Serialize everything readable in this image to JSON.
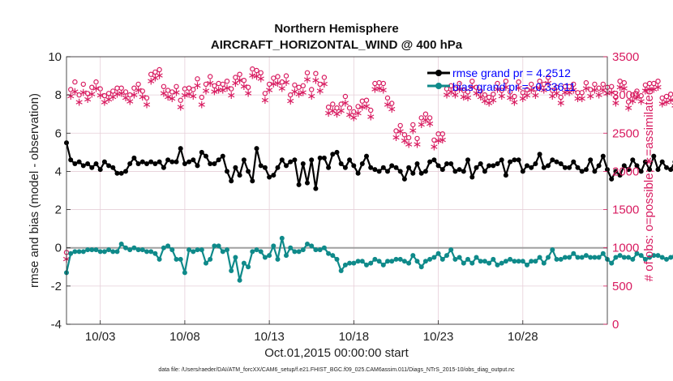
{
  "colors": {
    "rmse": "#000000",
    "bias": "#0f8a8a",
    "obs": "#d81b60",
    "legend_text": "#0000ff",
    "zero_line": "#a0a0a0",
    "grid": "#e6cfd8"
  },
  "chart_data": {
    "type": "line",
    "title": "Northern Hemisphere",
    "subtitle": "AIRCRAFT_HORIZONTAL_WIND @ 400 hPa",
    "xlabel": "Oct.01,2015 00:00:00 start",
    "ylabel_left": "rmse and bias (model - observation)",
    "ylabel_right": "# of obs: o=possible; ∗=assimilated",
    "footer": "data file: /Users/raeder/DAI/ATM_forcXX/CAM6_setup/f.e21.FHIST_BGC.f09_025.CAM6assim.011/Diags_NTrS_2015-10/obs_diag_output.nc",
    "x_tick_labels": [
      "10/03",
      "10/08",
      "10/13",
      "10/18",
      "10/23",
      "10/28"
    ],
    "x_ticks": [
      3,
      8,
      13,
      18,
      23,
      28
    ],
    "xlim": [
      1,
      33
    ],
    "ylim_left": [
      -4,
      10
    ],
    "yticks_left": [
      "10",
      "8",
      "6",
      "4",
      "2",
      "0",
      "-2",
      "-4"
    ],
    "ylim_right": [
      0,
      3500
    ],
    "yticks_right": [
      "3500",
      "3000",
      "2500",
      "2000",
      "1500",
      "1000",
      "500",
      "0"
    ],
    "legend": {
      "position": "top-right",
      "rmse_label": "rmse grand pr = 4.2512",
      "bias_label": "bias grand pr = -0.33611"
    },
    "series": [
      {
        "name": "rmse",
        "axis": "left",
        "step": 0.25,
        "start": 1.0,
        "values": [
          5.5,
          4.6,
          4.4,
          4.5,
          4.3,
          4.4,
          4.2,
          4.4,
          4.1,
          4.5,
          4.3,
          4.2,
          3.9,
          3.9,
          4.0,
          4.4,
          4.7,
          4.4,
          4.5,
          4.4,
          4.5,
          4.4,
          4.5,
          4.2,
          4.6,
          4.5,
          4.5,
          5.2,
          4.4,
          4.5,
          4.6,
          4.3,
          5.0,
          4.8,
          4.4,
          4.4,
          4.6,
          4.8,
          4.0,
          3.5,
          4.2,
          3.8,
          4.6,
          4.0,
          3.5,
          5.2,
          4.3,
          4.2,
          3.7,
          3.8,
          4.2,
          4.6,
          4.3,
          4.5,
          4.6,
          3.3,
          4.4,
          3.4,
          4.6,
          3.1,
          4.7,
          4.7,
          4.2,
          4.9,
          5.0,
          4.4,
          4.2,
          4.6,
          4.3,
          3.9,
          4.4,
          4.8,
          4.2,
          4.1,
          4.0,
          4.2,
          4.0,
          4.3,
          4.2,
          4.0,
          3.6,
          4.2,
          3.9,
          4.4,
          3.9,
          4.0,
          4.5,
          4.6,
          4.3,
          4.1,
          4.4,
          4.4,
          4.0,
          4.1,
          4.0,
          4.6,
          3.7,
          4.2,
          4.4,
          4.0,
          4.3,
          4.3,
          4.4,
          4.6,
          3.8,
          4.5,
          4.6,
          4.6,
          4.0,
          4.3,
          4.2,
          4.4,
          4.9,
          4.2,
          4.3,
          4.6,
          4.5,
          4.4,
          4.2,
          4.2,
          4.5,
          4.2,
          4.0,
          4.1,
          4.6,
          4.0,
          4.3,
          4.8,
          4.1,
          3.6,
          4.0,
          3.8,
          4.3,
          4.1,
          4.6,
          4.3,
          4.0,
          4.5,
          4.1,
          4.8,
          4.1,
          4.5,
          4.2,
          4.1,
          4.5,
          4.1,
          4.3,
          4.0,
          4.2,
          4.3,
          4.2,
          4.0,
          4.3,
          4.1,
          4.2,
          4.5,
          4.1,
          4.1,
          4.6,
          4.2,
          3.9,
          4.4,
          4.7,
          4.3,
          3.9,
          4.2,
          4.1,
          3.8,
          4.1,
          4.1,
          4.1,
          3.8,
          4.5,
          4.5,
          4.6,
          4.6,
          4.2,
          4.6,
          4.7,
          4.6,
          4.6,
          4.5,
          4.7,
          4.6,
          4.3,
          4.2,
          4.0,
          4.1,
          4.3,
          4.0,
          4.0,
          3.7,
          4.0,
          4.1,
          3.9,
          4.2,
          3.9,
          4.1,
          4.3,
          4.0,
          4.1,
          4.3,
          4.4,
          4.3,
          4.1,
          4.1,
          4.1,
          4.2,
          4.4,
          4.0,
          4.5,
          4.6,
          4.3,
          4.0,
          3.9,
          4.8,
          4.3,
          4.4,
          4.2,
          4.1,
          4.1
        ]
      },
      {
        "name": "bias",
        "axis": "left",
        "step": 0.25,
        "start": 1.0,
        "values": [
          -1.3,
          -0.3,
          -0.2,
          -0.2,
          -0.2,
          -0.1,
          -0.1,
          -0.1,
          -0.2,
          -0.2,
          -0.1,
          -0.2,
          -0.2,
          0.2,
          0.0,
          -0.1,
          0.0,
          -0.1,
          -0.1,
          -0.2,
          -0.2,
          -0.3,
          -0.6,
          0.0,
          0.1,
          -0.1,
          -0.6,
          -0.6,
          -1.3,
          -0.1,
          -0.2,
          -0.1,
          -0.1,
          -0.8,
          -0.6,
          0.1,
          0.1,
          -0.2,
          -0.1,
          -1.2,
          -0.5,
          -1.7,
          -0.8,
          -1.0,
          -0.2,
          -0.1,
          -0.2,
          -0.5,
          -0.4,
          0.1,
          -0.6,
          0.5,
          -0.4,
          0.0,
          -0.2,
          -0.2,
          -0.1,
          0.2,
          0.1,
          -0.1,
          -0.1,
          0.0,
          -0.3,
          -0.4,
          -0.6,
          -1.2,
          -0.9,
          -0.8,
          -0.8,
          -0.7,
          -0.7,
          -0.9,
          -0.8,
          -0.6,
          -0.7,
          -0.9,
          -0.7,
          -0.7,
          -0.6,
          -0.6,
          -0.7,
          -0.8,
          -0.4,
          -0.7,
          -1.0,
          -0.7,
          -0.6,
          -0.5,
          -0.3,
          -0.6,
          -0.4,
          -0.1,
          -0.6,
          -0.5,
          -0.8,
          -0.6,
          -0.8,
          -0.5,
          -0.7,
          -0.7,
          -0.8,
          -0.6,
          -0.9,
          -0.8,
          -0.7,
          -0.6,
          -0.7,
          -0.7,
          -0.7,
          -0.9,
          -0.7,
          -0.7,
          -0.5,
          -0.8,
          -0.5,
          -0.1,
          -0.6,
          -0.6,
          -0.5,
          -0.5,
          -0.3,
          -0.5,
          -0.5,
          -0.4,
          -0.5,
          -0.5,
          -0.5,
          -0.3,
          -0.6,
          -0.8,
          -0.5,
          -0.4,
          -0.5,
          -0.5,
          -0.6,
          -0.3,
          -0.4,
          -0.6,
          -0.5,
          -0.4,
          -0.4,
          -0.5,
          -0.6,
          -0.5,
          -0.4,
          -0.4,
          -0.5,
          -0.3,
          -0.4,
          -0.3,
          -0.4,
          -0.2,
          -0.3,
          -0.3,
          -0.4,
          -0.1,
          -0.3,
          -0.5,
          -0.4,
          -0.4,
          -0.6,
          -0.3,
          -0.5,
          -0.4,
          -0.3,
          0.3,
          -0.3,
          -0.1,
          0.3,
          -0.1,
          -0.3,
          0.2,
          -0.2,
          0.3,
          -0.2,
          0.7,
          -0.1,
          0.0,
          -0.2,
          -0.4,
          -0.6,
          -0.2,
          -0.4,
          -0.2,
          -0.2,
          -0.1,
          -0.2,
          -0.1,
          0.0,
          0.0,
          0.2,
          0.0,
          0.0,
          -0.1,
          0.1,
          -0.2,
          0.2,
          -0.3,
          -0.1,
          0.4,
          0.0,
          0.6,
          0.4,
          0.1,
          0.3,
          0.3,
          0.1,
          0.2,
          0.1,
          0.2,
          0.0,
          -0.1,
          -0.2,
          -0.1,
          -0.2,
          -0.3,
          -0.1,
          0.1,
          -0.2,
          -0.2,
          -0.1,
          -0.2,
          -0.3,
          -0.2,
          -0.3
        ]
      },
      {
        "name": "obs possible",
        "axis": "right",
        "marker": "o",
        "step": 0.25,
        "start": 1.0,
        "values": [
          940,
          3070,
          3170,
          3000,
          3140,
          3020,
          3100,
          3170,
          3080,
          2990,
          3020,
          3050,
          3090,
          3090,
          3040,
          3000,
          3090,
          3140,
          3050,
          2960,
          3270,
          3300,
          3330,
          3110,
          3060,
          3040,
          3110,
          2930,
          3080,
          3090,
          3070,
          3210,
          2970,
          3140,
          3240,
          3120,
          3150,
          3140,
          3180,
          3080,
          3230,
          3270,
          3190,
          3100,
          3340,
          3320,
          3290,
          3020,
          3140,
          3220,
          3240,
          3170,
          3250,
          3000,
          3130,
          3100,
          3120,
          3290,
          3070,
          3280,
          3140,
          3230,
          2840,
          2880,
          2830,
          2880,
          2980,
          2830,
          2780,
          2850,
          2920,
          2930,
          2800,
          3150,
          3160,
          3150,
          2960,
          2890,
          2530,
          2600,
          2480,
          2440,
          2610,
          2430,
          2700,
          2750,
          2700,
          2410,
          2490,
          2490,
          3080,
          3120,
          3080,
          3150,
          3060,
          3040,
          3180,
          3100,
          3050,
          3000,
          2970,
          3010,
          3150,
          3060,
          3180,
          3040,
          2980,
          3170,
          3030,
          3070,
          3140,
          3080,
          3180,
          3140,
          3230,
          3060,
          3100,
          2970,
          3110,
          3110,
          3140,
          3030,
          3030,
          3160,
          3070,
          3140,
          3090,
          3140,
          3100,
          3110,
          2970,
          3180,
          3160,
          2910,
          3000,
          3050,
          2990,
          3130,
          3150,
          3150,
          3180,
          2960,
          2980,
          3010,
          2940,
          3000,
          3030,
          2940,
          3130,
          3090,
          3120,
          3090,
          3000,
          3040,
          3140,
          3030,
          3180,
          3080,
          3120,
          3080,
          3180,
          3200,
          3070,
          3080,
          3120,
          3100,
          3220,
          3170,
          3090,
          3140,
          3160,
          3120
        ]
      },
      {
        "name": "obs assimilated",
        "axis": "right",
        "marker": "*",
        "step": 0.25,
        "start": 1.0,
        "values": [
          870,
          3000,
          3060,
          2920,
          3050,
          2960,
          3030,
          3100,
          3010,
          2920,
          2960,
          2990,
          3030,
          3040,
          2980,
          2930,
          3020,
          3080,
          2990,
          2890,
          3200,
          3240,
          3270,
          3040,
          2990,
          2970,
          3050,
          2860,
          3010,
          3030,
          3000,
          3140,
          2890,
          3070,
          3170,
          3060,
          3080,
          3080,
          3110,
          3010,
          3170,
          3210,
          3130,
          3040,
          3270,
          3260,
          3230,
          2950,
          3080,
          3160,
          3170,
          3100,
          3180,
          2940,
          3060,
          3030,
          3050,
          3220,
          3000,
          3210,
          3070,
          3160,
          2780,
          2810,
          2770,
          2810,
          2910,
          2760,
          2720,
          2780,
          2860,
          2870,
          2730,
          3090,
          3100,
          3080,
          2890,
          2830,
          2460,
          2540,
          2420,
          2370,
          2550,
          2370,
          2630,
          2690,
          2640,
          2340,
          2420,
          2430,
          3020,
          3060,
          3020,
          3090,
          2990,
          2980,
          3120,
          3040,
          2990,
          2940,
          2910,
          2950,
          3090,
          3000,
          3120,
          2980,
          2920,
          3110,
          2970,
          3010,
          3080,
          3010,
          3110,
          3080,
          3170,
          3000,
          3040,
          2910,
          3050,
          3050,
          3080,
          2970,
          2970,
          3100,
          3000,
          3080,
          3020,
          3080,
          3040,
          3050,
          2910,
          3120,
          3100,
          2850,
          2940,
          2990,
          2930,
          3070,
          3090,
          3090,
          3120,
          2900,
          2920,
          2950,
          2880,
          2940,
          2970,
          2880,
          3070,
          3030,
          3060,
          3030,
          2940,
          2980,
          3080,
          2970,
          3120,
          3020,
          3060,
          3020,
          3120,
          3140,
          3010,
          3020,
          3060,
          3040,
          3160,
          3110,
          3030,
          3080,
          3100,
          3060
        ]
      }
    ]
  }
}
